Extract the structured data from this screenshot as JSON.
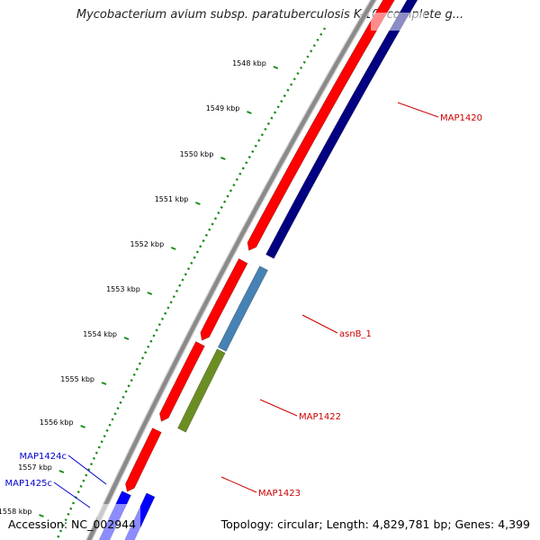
{
  "title": "Mycobacterium avium subsp. paratuberculosis K-10, complete g...",
  "footer": {
    "accession": "Accession: NC_002944",
    "summary": "Topology: circular; Length: 4,829,781 bp; Genes: 4,399"
  },
  "ticks": [
    "1548 kbp",
    "1549 kbp",
    "1550 kbp",
    "1551 kbp",
    "1552 kbp",
    "1553 kbp",
    "1554 kbp",
    "1555 kbp",
    "1556 kbp",
    "1557 kbp",
    "1558 kbp"
  ],
  "genes": [
    {
      "name": "MAP1420",
      "color": "#cc0000"
    },
    {
      "name": "asnB_1",
      "color": "#cc0000"
    },
    {
      "name": "MAP1422",
      "color": "#cc0000"
    },
    {
      "name": "MAP1423",
      "color": "#cc0000"
    },
    {
      "name": "MAP1424c",
      "color": "#0000cc"
    },
    {
      "name": "MAP1425c",
      "color": "#0000cc"
    }
  ],
  "colors": {
    "backbone": "#8a8a8a",
    "forward_cds": "#ff0000",
    "reverse_cds": "#000080",
    "asnB": "#4682b4",
    "map1422": "#6b8e23",
    "reverse_small": "#0000ff",
    "gc_ticks": "#1a8a1a"
  }
}
